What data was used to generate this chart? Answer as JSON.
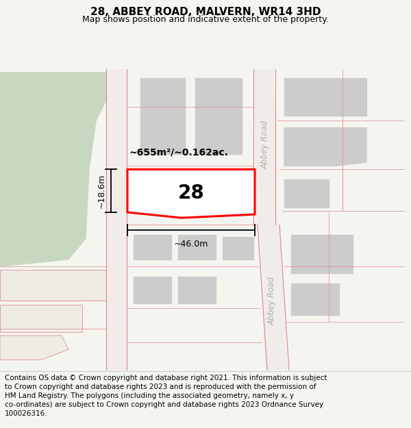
{
  "title": "28, ABBEY ROAD, MALVERN, WR14 3HD",
  "subtitle": "Map shows position and indicative extent of the property.",
  "footer": "Contains OS data © Crown copyright and database right 2021. This information is subject to Crown copyright and database rights 2023 and is reproduced with the permission of HM Land Registry. The polygons (including the associated geometry, namely x, y co-ordinates) are subject to Crown copyright and database rights 2023 Ordnance Survey 100026316.",
  "background_color": "#f5f5f0",
  "map_bg": "#f5f5f0",
  "footer_bg": "#ffffff",
  "green_area_color": "#c8d8c0",
  "building_color": "#cccccc",
  "highlight_color": "#ff0000",
  "road_line_color": "#e09090",
  "area_text": "~655m²/~0.162ac.",
  "number_text": "28",
  "width_text": "~46.0m",
  "height_text": "~18.6m",
  "abbey_road_label": "Abbey Road",
  "title_fontsize": 11,
  "subtitle_fontsize": 9,
  "footer_fontsize": 7.5
}
